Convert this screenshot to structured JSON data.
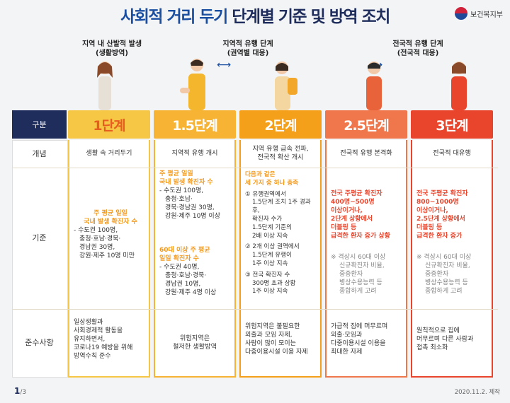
{
  "title": {
    "part1": "사회적 거리 두기",
    "part2": "단계별 기준 및 방역 조치"
  },
  "ministry": "보건복지부",
  "phases": [
    {
      "line1": "지역 내 산발적 발생",
      "line2": "(생활방역)"
    },
    {
      "line1": "지역적 유행 단계",
      "line2": "(권역별 대응)"
    },
    {
      "line1": "전국적 유행 단계",
      "line2": "(전국적 대응)"
    }
  ],
  "row_headers": {
    "stage": "구분",
    "concept": "개념",
    "criteria": "기준",
    "compliance": "준수사항"
  },
  "colors": {
    "s1": "#f6c744",
    "s15": "#f6b334",
    "s2": "#f5a01a",
    "s25": "#f0764b",
    "s3": "#e9452d",
    "navy": "#1f2d5c"
  },
  "stages": [
    {
      "name": "1단계",
      "concept": "생활 속 거리두기",
      "criteria": [
        "주 평균 일일",
        "국내 발생 확진자 수",
        "- 수도권 100명,",
        "충청·호남·경북·",
        "경남권 30명,",
        "강원·제주 10명 미만"
      ],
      "compliance": [
        "일상생활과",
        "사회경제적 활동을",
        "유지하면서,",
        "코로나19 예방을 위해",
        "방역수칙 준수"
      ]
    },
    {
      "name": "1.5단계",
      "concept": "지역적 유행 개시",
      "criteria_a": [
        "주 평균 일일",
        "국내 발생 확진자 수",
        "- 수도권 100명,",
        "충청·호남·",
        "경북·경남권 30명,",
        "강원·제주 10명 이상"
      ],
      "criteria_b": [
        "60대 이상 주 평균",
        "일일 확진자 수",
        "- 수도권 40명,",
        "충청·호남·경북·",
        "경남권 10명,",
        "강원·제주 4명 이상"
      ],
      "compliance": [
        "위험지역은",
        "철저한 생활방역"
      ]
    },
    {
      "name": "2단계",
      "concept": [
        "지역 유행 급속 전파,",
        "전국적 확산 개시"
      ],
      "criteria": [
        "다음과 같은",
        "세 가지 중 하나 충족",
        "① 유행권역에서",
        "1.5단계 조치 1주 경과 후,",
        "확진자 수가",
        "1.5단계 기준의",
        "2배 이상 지속",
        "② 2개 이상 권역에서",
        "1.5단계 유행이",
        "1주 이상 지속",
        "③ 전국 확진자 수",
        "300명 초과 상황",
        "1주 이상 지속"
      ],
      "compliance": [
        "위험지역은 불필요한",
        "외출과 모임 자제,",
        "사람이 많이 모이는",
        "다중이용시설 이용 자제"
      ]
    },
    {
      "name": "2.5단계",
      "concept": "전국적 유행 본격화",
      "criteria": [
        "전국 주평균 확진자",
        "400명~500명",
        "이상이거나,",
        "2단계 상황에서",
        "더블링 등",
        "급격한 환자 증가 상황"
      ],
      "note": [
        "※ 격상시 60대 이상",
        "신규확진자 비율,",
        "중증환자",
        "병상수용능력 등",
        "종합하게 고려"
      ],
      "compliance": [
        "가급적 집에 머무르며",
        "외출·모임과",
        "다중이용시설 이용을",
        "최대한 자제"
      ]
    },
    {
      "name": "3단계",
      "concept": "전국적 대유행",
      "criteria": [
        "전국 주평균 확진자",
        "800~1000명",
        "이상이거나,",
        "2.5단계 상황에서",
        "더블링 등",
        "급격한 환자 증가"
      ],
      "note": [
        "※ 격상시 60대 이상",
        "신규확진자 비율,",
        "중증환자",
        "병상수용능력 등",
        "종합하게 고려"
      ],
      "compliance": [
        "원칙적으로 집에",
        "머무르며 다른 사람과",
        "접촉 최소화"
      ]
    }
  ],
  "footer": {
    "page": "1",
    "total": "/3",
    "date": "2020.11.2. 제작"
  }
}
